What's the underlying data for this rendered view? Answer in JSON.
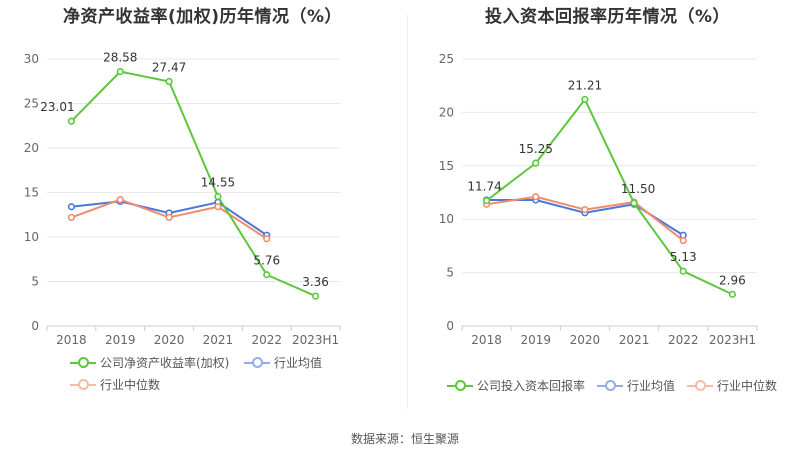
{
  "source": "数据来源：恒生聚源",
  "chart_data": [
    {
      "type": "line",
      "title": "净资产收益率(加权)历年情况（%）",
      "categories": [
        "2018",
        "2019",
        "2020",
        "2021",
        "2022",
        "2023H1"
      ],
      "y_ticks": [
        "0",
        "5",
        "10",
        "15",
        "20",
        "25",
        "30"
      ],
      "ylim": [
        0,
        30
      ],
      "grid": true,
      "legend_position": "bottom",
      "series": [
        {
          "name": "公司净资产收益率(加权)",
          "color": "#5cc73b",
          "labels": true,
          "values": [
            23.01,
            28.58,
            27.47,
            14.55,
            5.76,
            3.36
          ]
        },
        {
          "name": "行业均值",
          "color": "#4a78d8",
          "labels": false,
          "values": [
            13.4,
            14.0,
            12.7,
            13.9,
            10.2,
            null
          ]
        },
        {
          "name": "行业中位数",
          "color": "#f08c6c",
          "labels": false,
          "values": [
            12.2,
            14.2,
            12.2,
            13.4,
            9.8,
            null
          ]
        }
      ]
    },
    {
      "type": "line",
      "title": "投入资本回报率历年情况（%）",
      "categories": [
        "2018",
        "2019",
        "2020",
        "2021",
        "2022",
        "2023H1"
      ],
      "y_ticks": [
        "0",
        "5",
        "10",
        "15",
        "20",
        "25"
      ],
      "ylim": [
        0,
        25
      ],
      "grid": true,
      "legend_position": "bottom",
      "series": [
        {
          "name": "公司投入资本回报率",
          "color": "#5cc73b",
          "labels": true,
          "values": [
            11.74,
            15.25,
            21.21,
            11.5,
            5.13,
            2.96
          ]
        },
        {
          "name": "行业均值",
          "color": "#4a78d8",
          "labels": false,
          "values": [
            11.8,
            11.8,
            10.6,
            11.4,
            8.5,
            null
          ]
        },
        {
          "name": "行业中位数",
          "color": "#f08c6c",
          "labels": false,
          "values": [
            11.4,
            12.1,
            10.9,
            11.6,
            8.0,
            null
          ]
        }
      ]
    }
  ]
}
